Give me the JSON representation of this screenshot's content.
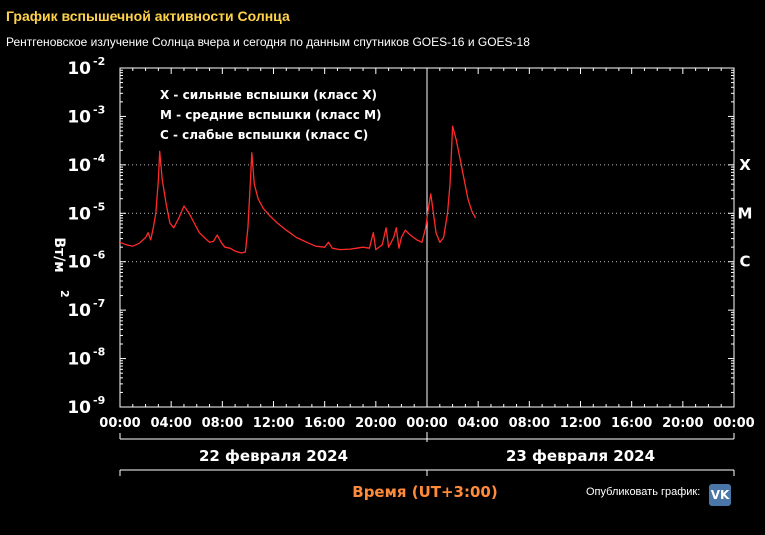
{
  "header": {
    "title": "График вспышечной активности Солнца",
    "subtitle": "Рентгеновское излучение Солнца вчера и сегодня по данным спутников GOES-16 и GOES-18"
  },
  "chart_data": {
    "type": "line",
    "ylabel": "Вт/м",
    "ylabel_power": "2",
    "y_scale": "log",
    "ylim_exp": [
      -9,
      -2
    ],
    "y_ticks": [
      {
        "base": "10",
        "exp": "-2",
        "value": -2
      },
      {
        "base": "10",
        "exp": "-3",
        "value": -3
      },
      {
        "base": "10",
        "exp": "-4",
        "value": -4
      },
      {
        "base": "10",
        "exp": "-5",
        "value": -5
      },
      {
        "base": "10",
        "exp": "-6",
        "value": -6
      },
      {
        "base": "10",
        "exp": "-7",
        "value": -7
      },
      {
        "base": "10",
        "exp": "-8",
        "value": -8
      },
      {
        "base": "10",
        "exp": "-9",
        "value": -9
      }
    ],
    "class_lines": [
      {
        "label": "X",
        "value": -4
      },
      {
        "label": "M",
        "value": -5
      },
      {
        "label": "C",
        "value": -6
      }
    ],
    "xlim_hours": [
      0,
      48
    ],
    "x_ticks": [
      "00:00",
      "04:00",
      "08:00",
      "12:00",
      "16:00",
      "20:00",
      "00:00",
      "04:00",
      "08:00",
      "12:00",
      "16:00",
      "20:00",
      "00:00"
    ],
    "day_labels": [
      "22 февраля 2024",
      "23 февраля 2024"
    ],
    "xlabel": "Время (UT+3:00)",
    "legend": [
      "X - сильные вспышки (класс X)",
      "M - средние вспышки (класс M)",
      "C - слабые вспышки (класс C)"
    ],
    "legend_placement": "top-left",
    "series": [
      {
        "color": "#ff2a2a",
        "points": [
          [
            0.0,
            -5.6
          ],
          [
            0.5,
            -5.65
          ],
          [
            1.0,
            -5.68
          ],
          [
            1.5,
            -5.62
          ],
          [
            1.8,
            -5.55
          ],
          [
            2.0,
            -5.5
          ],
          [
            2.2,
            -5.4
          ],
          [
            2.4,
            -5.55
          ],
          [
            2.6,
            -5.3
          ],
          [
            2.8,
            -5.0
          ],
          [
            3.0,
            -4.3
          ],
          [
            3.1,
            -3.72
          ],
          [
            3.3,
            -4.3
          ],
          [
            3.6,
            -4.8
          ],
          [
            3.9,
            -5.2
          ],
          [
            4.2,
            -5.3
          ],
          [
            4.6,
            -5.1
          ],
          [
            5.0,
            -4.85
          ],
          [
            5.4,
            -5.0
          ],
          [
            5.8,
            -5.2
          ],
          [
            6.2,
            -5.4
          ],
          [
            6.6,
            -5.5
          ],
          [
            7.0,
            -5.6
          ],
          [
            7.3,
            -5.58
          ],
          [
            7.6,
            -5.45
          ],
          [
            7.9,
            -5.6
          ],
          [
            8.2,
            -5.7
          ],
          [
            8.6,
            -5.72
          ],
          [
            9.0,
            -5.78
          ],
          [
            9.5,
            -5.82
          ],
          [
            9.8,
            -5.8
          ],
          [
            10.0,
            -5.3
          ],
          [
            10.2,
            -4.3
          ],
          [
            10.3,
            -3.75
          ],
          [
            10.5,
            -4.4
          ],
          [
            10.8,
            -4.7
          ],
          [
            11.2,
            -4.9
          ],
          [
            11.7,
            -5.05
          ],
          [
            12.3,
            -5.2
          ],
          [
            13.0,
            -5.35
          ],
          [
            13.8,
            -5.5
          ],
          [
            14.6,
            -5.6
          ],
          [
            15.3,
            -5.68
          ],
          [
            16.0,
            -5.7
          ],
          [
            16.3,
            -5.6
          ],
          [
            16.6,
            -5.72
          ],
          [
            17.2,
            -5.75
          ],
          [
            18.0,
            -5.74
          ],
          [
            18.5,
            -5.72
          ],
          [
            19.0,
            -5.7
          ],
          [
            19.5,
            -5.72
          ],
          [
            19.8,
            -5.4
          ],
          [
            20.0,
            -5.75
          ],
          [
            20.5,
            -5.65
          ],
          [
            20.8,
            -5.3
          ],
          [
            21.0,
            -5.7
          ],
          [
            21.4,
            -5.5
          ],
          [
            21.6,
            -5.3
          ],
          [
            21.8,
            -5.72
          ],
          [
            22.0,
            -5.5
          ],
          [
            22.3,
            -5.35
          ],
          [
            22.7,
            -5.45
          ],
          [
            23.2,
            -5.55
          ],
          [
            23.6,
            -5.6
          ],
          [
            23.9,
            -5.3
          ],
          [
            24.1,
            -4.9
          ],
          [
            24.3,
            -4.6
          ],
          [
            24.5,
            -5.0
          ],
          [
            24.7,
            -5.4
          ],
          [
            25.0,
            -5.6
          ],
          [
            25.3,
            -5.5
          ],
          [
            25.6,
            -5.0
          ],
          [
            25.8,
            -4.4
          ],
          [
            26.0,
            -3.2
          ],
          [
            26.3,
            -3.5
          ],
          [
            26.6,
            -3.9
          ],
          [
            26.9,
            -4.3
          ],
          [
            27.2,
            -4.7
          ],
          [
            27.5,
            -4.95
          ],
          [
            27.8,
            -5.1
          ]
        ]
      }
    ]
  },
  "footer": {
    "publish_label": "Опубликовать график:",
    "vk_icon_label": "VK"
  }
}
